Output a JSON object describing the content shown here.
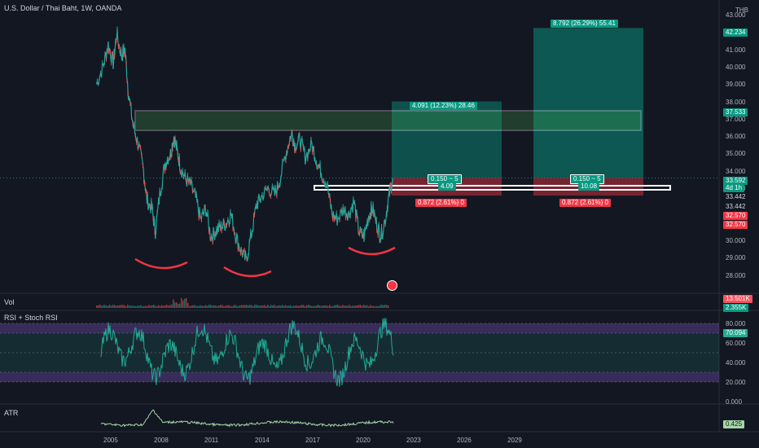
{
  "header": {
    "symbol_title": "U.S. Dollar / Thai Baht, 1W, OANDA",
    "currency": "THB"
  },
  "main_axis": {
    "ticks": [
      "43.000",
      "42.000",
      "41.000",
      "40.000",
      "39.000",
      "38.000",
      "37.000",
      "36.000",
      "35.000",
      "34.000",
      "33.000",
      "32.000",
      "31.000",
      "30.000",
      "29.000",
      "28.000"
    ],
    "tags": [
      {
        "text": "42.234",
        "color": "#089981"
      },
      {
        "text": "37.533",
        "color": "#089981"
      },
      {
        "text": "33.592",
        "color": "#089981"
      },
      {
        "text": "4d 1h",
        "color": "#089981"
      },
      {
        "text": "33.442",
        "color": "#131722"
      },
      {
        "text": "33.442",
        "color": "#131722"
      },
      {
        "text": "32.570",
        "color": "#f23645"
      },
      {
        "text": "32.570",
        "color": "#f23645"
      }
    ]
  },
  "positions": {
    "left": {
      "target_label": "4.091 (12.23%) 28.46",
      "center_label": "0.150 ~ 5",
      "center_sub": "4.09",
      "stop_label": "0.872 (2.61%) 0"
    },
    "right": {
      "target_label": "8.792 (26.29%) 55.41",
      "center_label": "0.150 ~ 5",
      "center_sub": "10.08",
      "stop_label": "0.872 (2.61%) 0"
    }
  },
  "volume_pane": {
    "title": "Vol",
    "tags": [
      {
        "text": "13.501K",
        "color": "#f7525f"
      },
      {
        "text": "2.355K",
        "color": "#089981"
      }
    ]
  },
  "rsi_pane": {
    "title": "RSI + Stoch RSI",
    "ticks": [
      "80.000",
      "60.000",
      "40.000",
      "20.000",
      "0.000"
    ],
    "value_tag": "70.094",
    "color": "#22ab94"
  },
  "atr_pane": {
    "title": "ATR",
    "value_tag": "0.425",
    "color": "#a5d6a7"
  },
  "time_axis": {
    "ticks": [
      "2005",
      "2008",
      "2011",
      "2014",
      "2017",
      "2020",
      "2023",
      "2026",
      "2029"
    ]
  },
  "chart_data": {
    "type": "line",
    "title": "U.S. Dollar / Thai Baht, 1W, OANDA",
    "ylabel": "THB",
    "ylim": [
      27.5,
      43.0
    ],
    "series": [
      {
        "name": "U.S. Dollar / Thai Baht",
        "x": [
          2004.1,
          2004.5,
          2004.8,
          2005.1,
          2005.3,
          2005.6,
          2005.8,
          2006.0,
          2006.3,
          2006.6,
          2006.9,
          2007.1,
          2007.4,
          2007.6,
          2007.9,
          2008.2,
          2008.5,
          2008.7,
          2008.9,
          2009.1,
          2009.4,
          2009.7,
          2010.0,
          2010.3,
          2010.6,
          2010.9,
          2011.2,
          2011.5,
          2011.8,
          2012.1,
          2012.4,
          2012.7,
          2013.0,
          2013.3,
          2013.6,
          2013.9,
          2014.3,
          2014.7,
          2015.0,
          2015.4,
          2015.7,
          2015.9,
          2016.2,
          2016.5,
          2016.9,
          2017.2,
          2017.5,
          2017.8,
          2018.1,
          2018.4,
          2018.8,
          2019.1,
          2019.4,
          2019.7,
          2020.0,
          2020.3,
          2020.5,
          2020.8,
          2021.0,
          2021.3,
          2021.5,
          2021.7
        ],
        "y": [
          39.0,
          40.0,
          41.3,
          40.2,
          41.9,
          40.6,
          41.0,
          38.5,
          36.5,
          35.5,
          34.0,
          32.3,
          31.8,
          30.5,
          32.9,
          34.5,
          35.0,
          36.0,
          35.1,
          34.2,
          33.5,
          33.2,
          32.4,
          31.2,
          31.8,
          30.2,
          30.5,
          30.8,
          31.0,
          31.5,
          30.2,
          29.4,
          28.8,
          30.3,
          32.0,
          32.5,
          33.0,
          32.6,
          33.5,
          35.2,
          36.2,
          35.5,
          35.8,
          34.8,
          35.5,
          34.5,
          33.8,
          33.2,
          31.5,
          31.2,
          31.8,
          31.5,
          32.2,
          30.5,
          30.2,
          31.5,
          31.8,
          30.8,
          30.2,
          31.4,
          32.7,
          33.59
        ]
      }
    ],
    "rsi_ylim": [
      0,
      100
    ],
    "rsi_levels": [
      80,
      70,
      50,
      30,
      20
    ]
  }
}
